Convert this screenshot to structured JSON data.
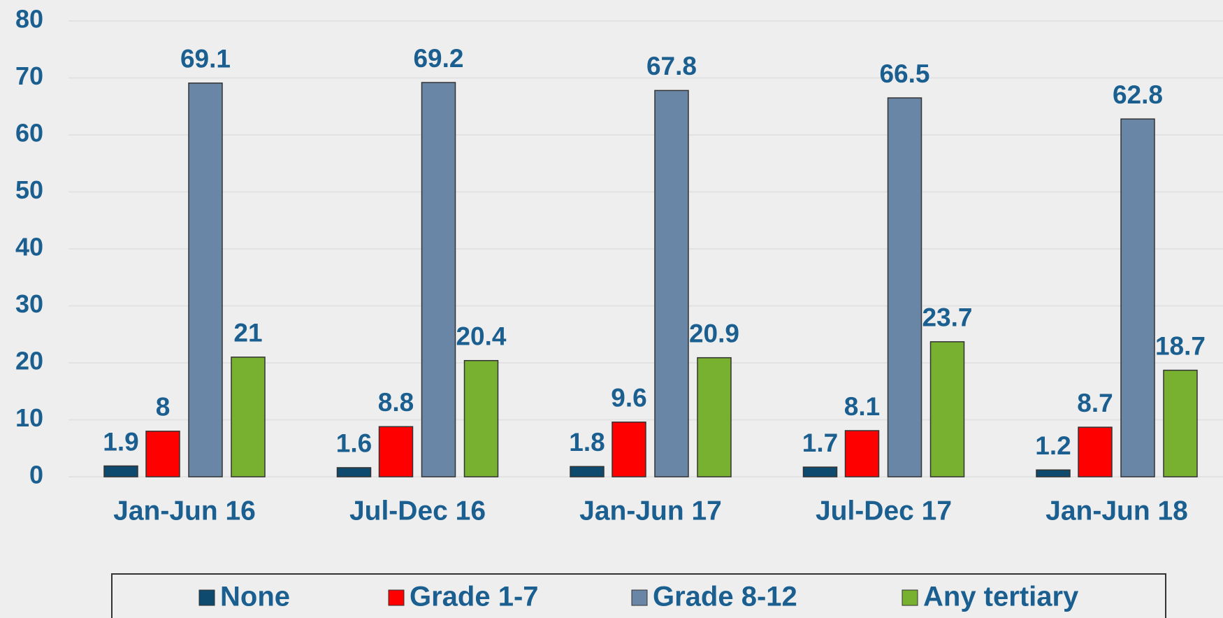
{
  "chart_data": {
    "type": "bar",
    "categories": [
      "Jan-Jun 16",
      "Jul-Dec 16",
      "Jan-Jun 17",
      "Jul-Dec 17",
      "Jan-Jun 18"
    ],
    "series": [
      {
        "name": "None",
        "color": "#0e4a6e",
        "values": [
          1.9,
          1.6,
          1.8,
          1.7,
          1.2
        ]
      },
      {
        "name": "Grade 1-7",
        "color": "#ff0000",
        "values": [
          8,
          8.8,
          9.6,
          8.1,
          8.7
        ]
      },
      {
        "name": "Grade 8-12",
        "color": "#6a86a6",
        "values": [
          69.1,
          69.2,
          67.8,
          66.5,
          62.8
        ]
      },
      {
        "name": "Any tertiary",
        "color": "#78b02f",
        "values": [
          21,
          20.4,
          20.9,
          23.7,
          18.7
        ]
      }
    ],
    "ylim": [
      0,
      80
    ],
    "yticks": [
      0,
      10,
      20,
      30,
      40,
      50,
      60,
      70,
      80
    ],
    "grid": true,
    "legend": "bottom"
  }
}
